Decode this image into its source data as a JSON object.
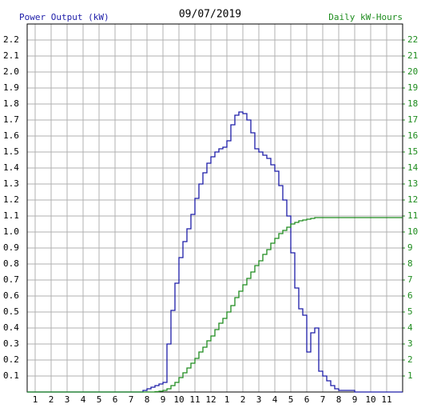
{
  "chart_data": {
    "type": "step",
    "title": "09/07/2019",
    "ylabel": "Power Output (kW)",
    "y2label": "Daily kW-Hours",
    "x": [
      0.5,
      7.5,
      7.75,
      8,
      8.25,
      8.5,
      8.75,
      9,
      9.25,
      9.5,
      9.75,
      10,
      10.25,
      10.5,
      10.75,
      11,
      11.25,
      11.5,
      11.75,
      12,
      12.25,
      12.5,
      12.75,
      13,
      13.25,
      13.5,
      13.75,
      14,
      14.25,
      14.5,
      14.75,
      15,
      15.25,
      15.5,
      15.75,
      16,
      16.25,
      16.5,
      16.75,
      17,
      17.25,
      17.5,
      17.75,
      18,
      18.25,
      18.5,
      18.75,
      19,
      19.25,
      19.5,
      19.75,
      20,
      20.25,
      20.5,
      20.75,
      21,
      24
    ],
    "series": [
      {
        "color": "#1c1ca8",
        "values": [
          0,
          0,
          0.01,
          0.02,
          0.03,
          0.04,
          0.05,
          0.06,
          0.3,
          0.51,
          0.68,
          0.84,
          0.94,
          1.02,
          1.11,
          1.21,
          1.3,
          1.37,
          1.43,
          1.47,
          1.5,
          1.52,
          1.53,
          1.57,
          1.67,
          1.73,
          1.75,
          1.74,
          1.7,
          1.62,
          1.52,
          1.5,
          1.48,
          1.46,
          1.42,
          1.38,
          1.29,
          1.2,
          1.1,
          0.87,
          0.65,
          0.52,
          0.48,
          0.25,
          0.37,
          0.4,
          0.13,
          0.1,
          0.07,
          0.04,
          0.02,
          0.01,
          0.01,
          0.01,
          0.01,
          0,
          0
        ]
      },
      {
        "color": "#1e8c1e",
        "axis": "y2",
        "values": [
          0,
          0,
          0,
          0,
          0,
          0.02,
          0.05,
          0.1,
          0.2,
          0.4,
          0.6,
          0.9,
          1.2,
          1.5,
          1.8,
          2.1,
          2.5,
          2.8,
          3.2,
          3.5,
          3.9,
          4.3,
          4.6,
          5.0,
          5.4,
          5.9,
          6.3,
          6.7,
          7.1,
          7.5,
          7.9,
          8.2,
          8.6,
          8.9,
          9.3,
          9.6,
          9.9,
          10.1,
          10.3,
          10.5,
          10.6,
          10.7,
          10.75,
          10.8,
          10.85,
          10.9,
          10.9,
          10.9,
          10.9,
          10.9,
          10.9,
          10.9,
          10.9,
          10.9,
          10.9,
          10.9,
          10.9
        ]
      }
    ],
    "xlim": [
      0.5,
      24
    ],
    "xticks": [
      1,
      2,
      3,
      4,
      5,
      6,
      7,
      8,
      9,
      10,
      11,
      12,
      {
        "value": 13,
        "label": "1"
      },
      {
        "value": 14,
        "label": "2"
      },
      {
        "value": 15,
        "label": "3"
      },
      {
        "value": 16,
        "label": "4"
      },
      {
        "value": 17,
        "label": "5"
      },
      {
        "value": 18,
        "label": "6"
      },
      {
        "value": 19,
        "label": "7"
      },
      {
        "value": 20,
        "label": "8"
      },
      {
        "value": 21,
        "label": "9"
      },
      {
        "value": 22,
        "label": "10"
      },
      {
        "value": 23,
        "label": "11"
      }
    ],
    "ylim": [
      0,
      2.3
    ],
    "yticks": [
      0.1,
      0.2,
      0.3,
      0.4,
      0.5,
      0.6,
      0.7,
      0.8,
      0.9,
      {
        "value": 1,
        "label": "1.0"
      },
      1.1,
      1.2,
      1.3,
      1.4,
      1.5,
      1.6,
      1.7,
      1.8,
      1.9,
      {
        "value": 2,
        "label": "2.0"
      },
      2.1,
      2.2
    ],
    "y2lim": [
      0,
      23
    ],
    "y2ticks": [
      1,
      2,
      3,
      4,
      5,
      6,
      7,
      8,
      9,
      10,
      11,
      12,
      13,
      14,
      15,
      16,
      17,
      18,
      19,
      20,
      21,
      22
    ],
    "grid": true
  }
}
